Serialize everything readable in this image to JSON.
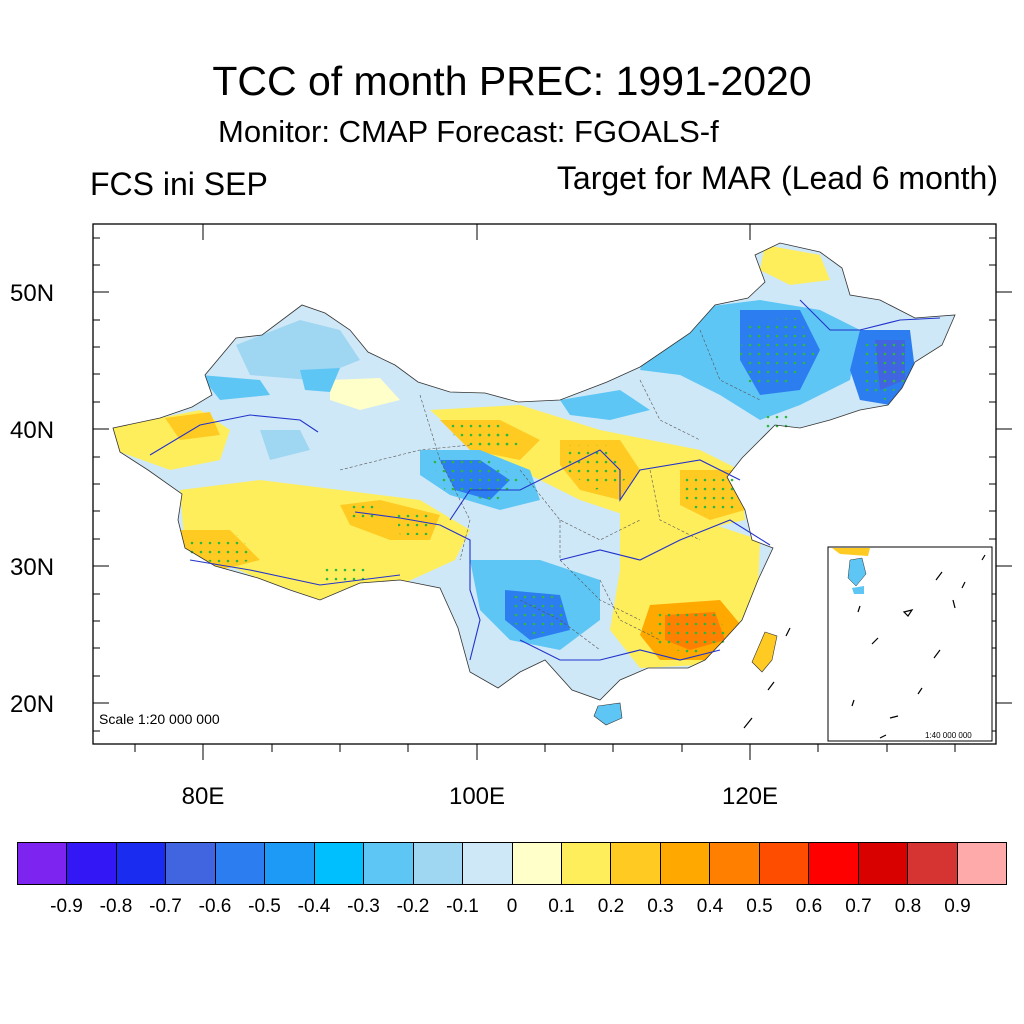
{
  "title": "TCC of month PREC: 1991-2020",
  "subtitle": "Monitor: CMAP   Forecast: FGOALS-f",
  "left_label": "FCS ini SEP",
  "right_label": "Target for MAR (Lead 6 month)",
  "lat_labels": [
    "50N",
    "40N",
    "30N",
    "20N"
  ],
  "lon_labels": [
    "80E",
    "100E",
    "120E"
  ],
  "scale_note": "Scale 1:20 000 000",
  "inset_scale": "1:40 000 000",
  "colorbar": {
    "colors": [
      "#7d24f0",
      "#3318f5",
      "#1a2cf0",
      "#4165e0",
      "#2c7ef0",
      "#1c9af5",
      "#00bfff",
      "#5ec6f5",
      "#9fd6f2",
      "#cfe8f7",
      "#ffffc9",
      "#ffee5c",
      "#ffcb22",
      "#ffa800",
      "#ff7f00",
      "#ff4d00",
      "#ff0000",
      "#d90000",
      "#d63333",
      "#ffaaaa"
    ],
    "labels": [
      "-0.9",
      "-0.8",
      "-0.7",
      "-0.6",
      "-0.5",
      "-0.4",
      "-0.3",
      "-0.2",
      "-0.1",
      "0",
      "0.1",
      "0.2",
      "0.3",
      "0.4",
      "0.5",
      "0.6",
      "0.7",
      "0.8",
      "0.9"
    ]
  }
}
